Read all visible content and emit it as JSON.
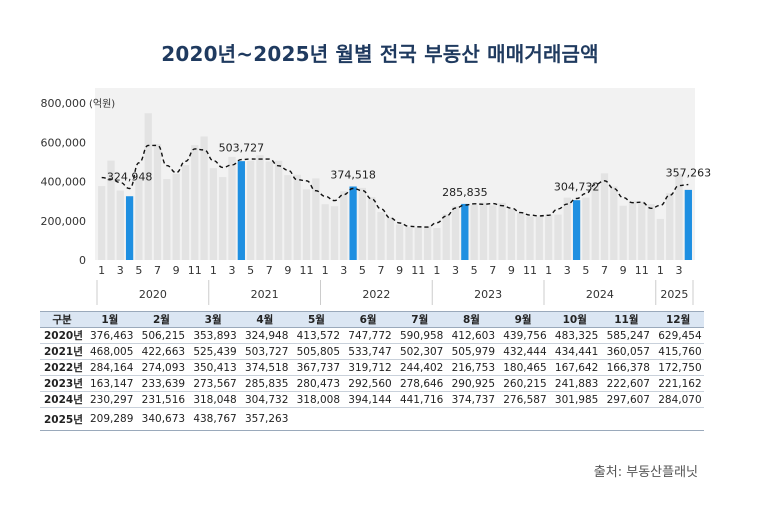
{
  "title": "2020년~2025년 월별 전국 부동산 매매거래금액",
  "source": "출처: 부동산플래닛",
  "colors": {
    "bar": "#e3e3e3",
    "highlight": "#1e8fe1",
    "line": "#111111",
    "plot_bg": "#f2f2f2",
    "title": "#1f3a5f"
  },
  "chart_data": {
    "type": "bar",
    "ylabel": "(억원)",
    "ylim": [
      0,
      800000
    ],
    "yticks": [
      "0",
      "200,000",
      "400,000",
      "600,000",
      "800,000"
    ],
    "ytick_values": [
      0,
      200000,
      400000,
      600000,
      800000
    ],
    "month_ticks": [
      "1",
      "3",
      "5",
      "7",
      "9",
      "11",
      "1",
      "3",
      "5",
      "7",
      "9",
      "11",
      "1",
      "3",
      "5",
      "7",
      "9",
      "11",
      "1",
      "3",
      "5",
      "7",
      "9",
      "11",
      "1",
      "3",
      "5",
      "7",
      "9",
      "11",
      "1",
      "3"
    ],
    "years": [
      "2020",
      "2021",
      "2022",
      "2023",
      "2024",
      "2025"
    ],
    "highlight_labels": [
      "324,948",
      "503,727",
      "374,518",
      "285,835",
      "304,732",
      "357,263"
    ],
    "highlight_index": [
      3,
      15,
      27,
      39,
      51,
      63
    ],
    "trend_line": "dashed moving average",
    "values": [
      376463,
      506215,
      353893,
      324948,
      413572,
      747772,
      590958,
      412603,
      439756,
      483325,
      585247,
      629454,
      468005,
      422663,
      525439,
      503727,
      505805,
      533747,
      502307,
      505979,
      432444,
      434441,
      360057,
      415760,
      284164,
      274093,
      350413,
      374518,
      367737,
      319712,
      244402,
      216753,
      180465,
      167642,
      166378,
      172750,
      163147,
      233639,
      273567,
      285835,
      280473,
      292560,
      278646,
      290925,
      260215,
      241883,
      222607,
      221162,
      230297,
      231516,
      318048,
      304732,
      318008,
      394144,
      441716,
      374737,
      276587,
      301985,
      297607,
      284070,
      209289,
      340673,
      438767,
      357263
    ]
  },
  "table": {
    "headers": [
      "구분",
      "1월",
      "2월",
      "3월",
      "4월",
      "5월",
      "6월",
      "7월",
      "8월",
      "9월",
      "10월",
      "11월",
      "12월"
    ],
    "rows": [
      [
        "2020년",
        "376,463",
        "506,215",
        "353,893",
        "324,948",
        "413,572",
        "747,772",
        "590,958",
        "412,603",
        "439,756",
        "483,325",
        "585,247",
        "629,454"
      ],
      [
        "2021년",
        "468,005",
        "422,663",
        "525,439",
        "503,727",
        "505,805",
        "533,747",
        "502,307",
        "505,979",
        "432,444",
        "434,441",
        "360,057",
        "415,760"
      ],
      [
        "2022년",
        "284,164",
        "274,093",
        "350,413",
        "374,518",
        "367,737",
        "319,712",
        "244,402",
        "216,753",
        "180,465",
        "167,642",
        "166,378",
        "172,750"
      ],
      [
        "2023년",
        "163,147",
        "233,639",
        "273,567",
        "285,835",
        "280,473",
        "292,560",
        "278,646",
        "290,925",
        "260,215",
        "241,883",
        "222,607",
        "221,162"
      ],
      [
        "2024년",
        "230,297",
        "231,516",
        "318,048",
        "304,732",
        "318,008",
        "394,144",
        "441,716",
        "374,737",
        "276,587",
        "301,985",
        "297,607",
        "284,070"
      ],
      [
        "2025년",
        "209,289",
        "340,673",
        "438,767",
        "357,263",
        "",
        "",
        "",
        "",
        "",
        "",
        "",
        ""
      ]
    ]
  }
}
